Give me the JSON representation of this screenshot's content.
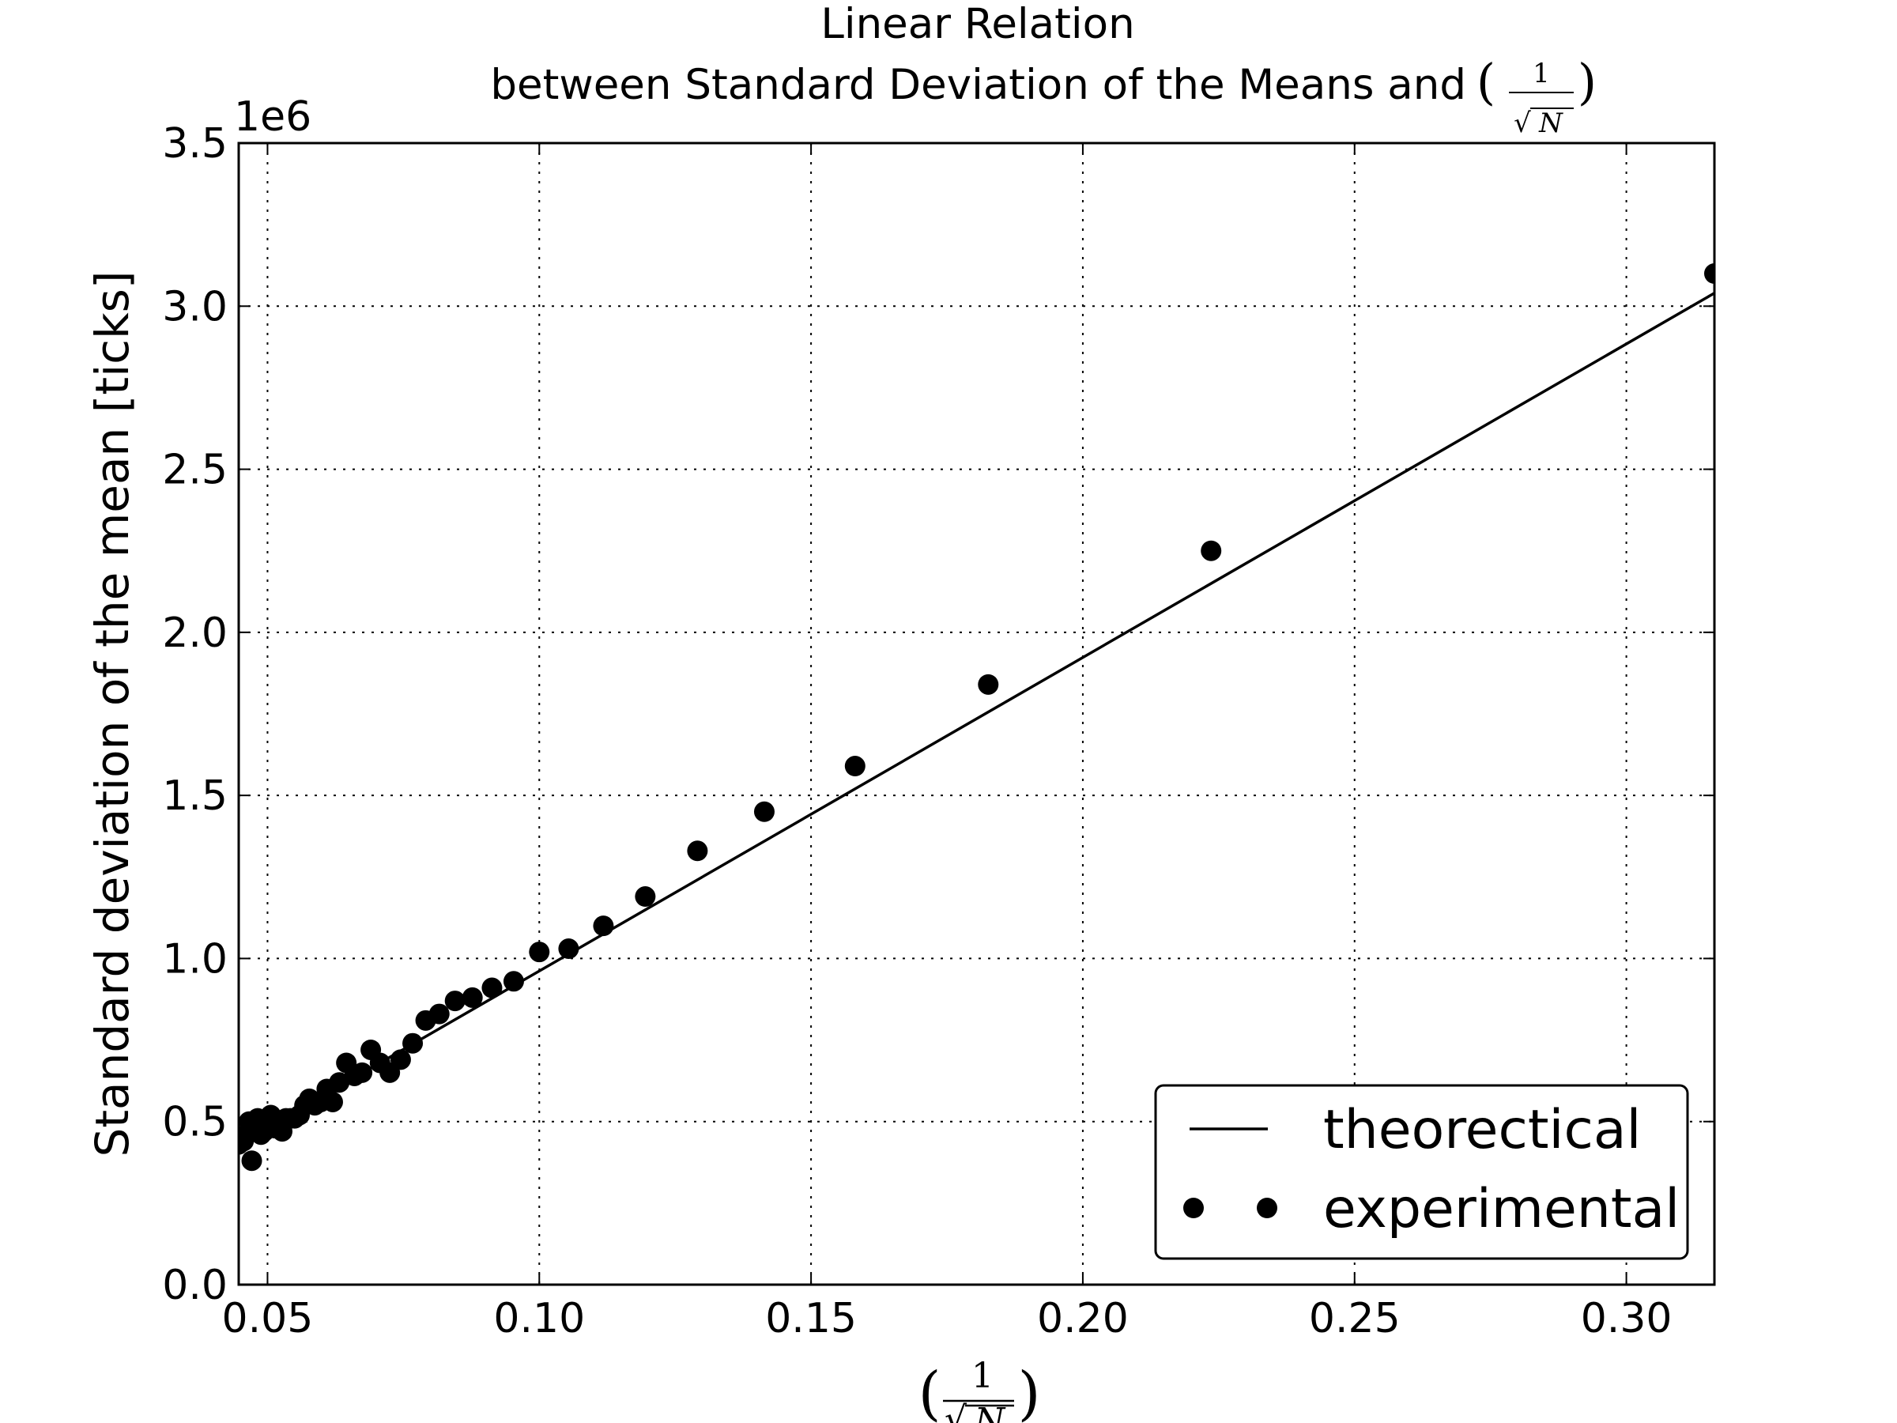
{
  "chart_data": {
    "type": "scatter",
    "title_lines": [
      "Linear Relation",
      "between Standard Deviation of the Means and"
    ],
    "title_math": {
      "numerator": "1",
      "radicand": "N"
    },
    "xlabel_math": {
      "numerator": "1",
      "radicand": "N"
    },
    "ylabel": "Standard deviation of the mean [ticks]",
    "y_offset_label": "1e6",
    "xlim": [
      0.0447,
      0.3162
    ],
    "ylim": [
      0,
      3500000
    ],
    "x_ticks": [
      0.05,
      0.1,
      0.15,
      0.2,
      0.25,
      0.3
    ],
    "x_tick_labels": [
      "0.05",
      "0.10",
      "0.15",
      "0.20",
      "0.25",
      "0.30"
    ],
    "y_ticks": [
      0,
      500000,
      1000000,
      1500000,
      2000000,
      2500000,
      3000000,
      3500000
    ],
    "y_tick_labels": [
      "0.0",
      "0.5",
      "1.0",
      "1.5",
      "2.0",
      "2.5",
      "3.0",
      "3.5"
    ],
    "grid": true,
    "legend_position": "lower-right",
    "series": [
      {
        "name": "theorectical",
        "kind": "line",
        "color": "#000000",
        "x": [
          0.0447,
          0.3162
        ],
        "y": [
          430000,
          3040000
        ]
      },
      {
        "name": "experimental",
        "kind": "scatter",
        "color": "#000000",
        "x": [
          0.3162,
          0.2236,
          0.1826,
          0.1581,
          0.1414,
          0.1291,
          0.1195,
          0.1118,
          0.1054,
          0.1,
          0.0953,
          0.0913,
          0.0877,
          0.0845,
          0.0816,
          0.0791,
          0.0767,
          0.0745,
          0.0725,
          0.0707,
          0.069,
          0.0674,
          0.066,
          0.0645,
          0.0632,
          0.062,
          0.0609,
          0.0598,
          0.0587,
          0.0577,
          0.0568,
          0.0559,
          0.055,
          0.0542,
          0.0534,
          0.0527,
          0.052,
          0.0513,
          0.0506,
          0.05,
          0.0494,
          0.0488,
          0.0482,
          0.0477,
          0.0471,
          0.0466,
          0.0461,
          0.0456,
          0.0452,
          0.0447
        ],
        "y": [
          3100000,
          2250000,
          1840000,
          1590000,
          1450000,
          1330000,
          1190000,
          1100000,
          1030000,
          1020000,
          930000,
          910000,
          880000,
          870000,
          830000,
          810000,
          740000,
          690000,
          650000,
          680000,
          720000,
          650000,
          640000,
          680000,
          620000,
          560000,
          600000,
          560000,
          550000,
          570000,
          550000,
          520000,
          510000,
          510000,
          510000,
          470000,
          500000,
          480000,
          520000,
          510000,
          470000,
          460000,
          510000,
          490000,
          380000,
          500000,
          460000,
          440000,
          450000,
          430000
        ]
      }
    ]
  }
}
